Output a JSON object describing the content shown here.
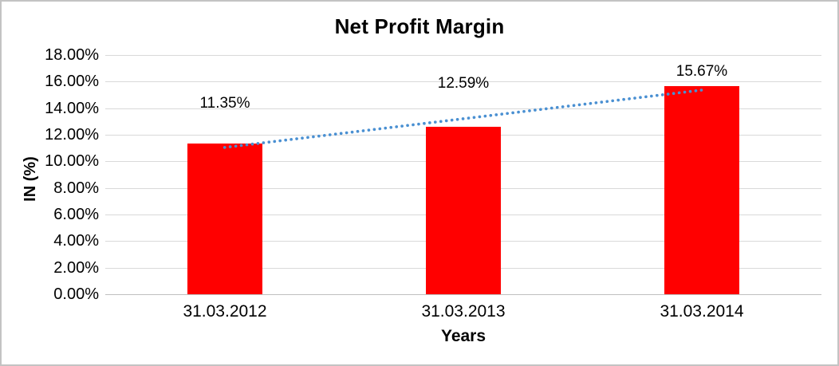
{
  "chart_data": {
    "type": "bar",
    "title": "Net Profit Margin",
    "categories": [
      "31.03.2012",
      "31.03.2013",
      "31.03.2014"
    ],
    "values": [
      11.35,
      12.59,
      15.67
    ],
    "data_labels": [
      "11.35%",
      "12.59%",
      "15.67%"
    ],
    "xlabel": "Years",
    "ylabel": "IN (%)",
    "ylim": [
      0,
      18
    ],
    "ytick_step": 2,
    "ytick_labels": [
      "0.00%",
      "2.00%",
      "4.00%",
      "6.00%",
      "8.00%",
      "10.00%",
      "12.00%",
      "14.00%",
      "16.00%",
      "18.00%"
    ],
    "grid": true,
    "legend_position": "none",
    "bar_color": "#FF0000",
    "trendline": {
      "type": "linear",
      "style": "dotted",
      "color": "#4A90D2",
      "series": "values"
    },
    "colors": {
      "gridline": "#D9D9D9",
      "axis_line": "#BFBFBF",
      "text": "#000000",
      "frame_border": "#C3C3C3",
      "background": "#FFFFFF"
    }
  }
}
